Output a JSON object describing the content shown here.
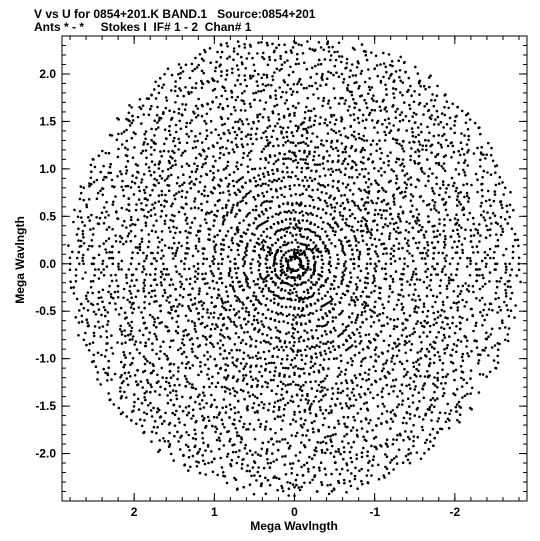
{
  "title_line1": "V vs U for 0854+201.K BAND.1   Source:0854+201",
  "title_line2": "Ants * - *     Stokes I  IF# 1 - 2  Chan# 1",
  "chart_data": {
    "type": "scatter",
    "title": "V vs U for 0854+201.K BAND.1   Source:0854+201",
    "subtitle": "Ants * - *     Stokes I  IF# 1 - 2  Chan# 1",
    "xlabel": "Mega Wavlngth",
    "ylabel": "Mega Wavlngth",
    "xlim": [
      2.9,
      -2.9
    ],
    "ylim": [
      -2.5,
      2.4
    ],
    "x_ticks": [
      2,
      1,
      0,
      -1,
      -2
    ],
    "x_tick_labels": [
      "2",
      "1",
      "0",
      "-1",
      "-2"
    ],
    "y_ticks": [
      2.0,
      1.5,
      1.0,
      0.5,
      0.0,
      -0.5,
      -1.0,
      -1.5,
      -2.0
    ],
    "y_tick_labels": [
      "2.0",
      "1.5",
      "1.0",
      "0.5",
      "0.0",
      "-0.5",
      "-1.0",
      "-1.5",
      "-2.0"
    ],
    "grid": false,
    "marker_color": "#000000",
    "pattern": "VLA uv-coverage: concentric elliptical tracks with six radial arms (point symmetric about origin), maximum radius about 2.6 Mega Wavlngth"
  }
}
